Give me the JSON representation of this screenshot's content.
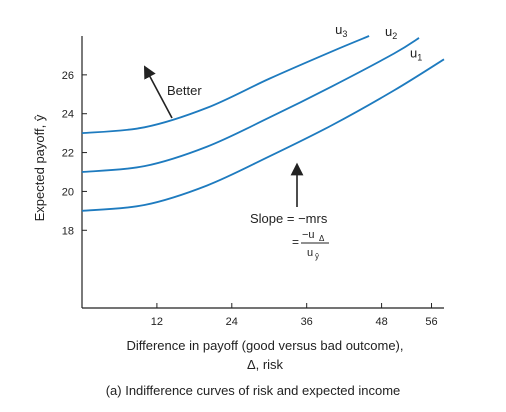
{
  "chart_data": {
    "type": "line",
    "title": "",
    "xlabel": "Difference in payoff (good versus bad outcome),",
    "xlabel_line2": "Δ, risk",
    "ylabel": "Expected payoff, ŷ",
    "xlim": [
      0,
      58
    ],
    "ylim": [
      14,
      28
    ],
    "x_ticks": [
      12,
      24,
      36,
      48,
      56
    ],
    "y_ticks": [
      18,
      20,
      22,
      24,
      26
    ],
    "grid": false,
    "series": [
      {
        "name": "u1",
        "x": [
          0,
          10,
          20,
          30,
          40,
          50,
          58
        ],
        "y": [
          19.0,
          19.3,
          20.3,
          21.8,
          23.4,
          25.2,
          26.8
        ]
      },
      {
        "name": "u2",
        "x": [
          0,
          10,
          20,
          30,
          40,
          50,
          54
        ],
        "y": [
          21.0,
          21.3,
          22.3,
          23.8,
          25.4,
          27.1,
          27.9
        ]
      },
      {
        "name": "u3",
        "x": [
          0,
          10,
          20,
          30,
          40,
          46
        ],
        "y": [
          23.0,
          23.3,
          24.3,
          25.8,
          27.2,
          28.0
        ]
      }
    ],
    "annotations": {
      "better": "Better",
      "slope_line1": "Slope = −mrs",
      "slope_eq": "=",
      "slope_num": "−u",
      "slope_num_sub": "Δ",
      "slope_den": "u",
      "slope_den_sub": "ŷ"
    },
    "colors": {
      "curve": "#1e7bbf",
      "axis": "#222222"
    }
  },
  "caption": "(a) Indifference curves of risk and expected income"
}
